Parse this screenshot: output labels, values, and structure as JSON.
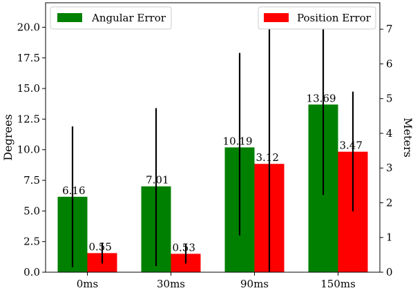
{
  "chart_data": {
    "type": "bar",
    "categories": [
      "0ms",
      "30ms",
      "90ms",
      "150ms"
    ],
    "series": [
      {
        "name": "Angular Error",
        "axis": "left",
        "color": "#008000",
        "values": [
          6.16,
          7.01,
          10.19,
          13.69
        ],
        "value_labels": [
          "6.16",
          "7.01",
          "10.19",
          "13.69"
        ],
        "error_low": [
          0.4,
          0.5,
          3.0,
          6.3
        ],
        "error_high": [
          11.9,
          13.4,
          17.9,
          21.0
        ]
      },
      {
        "name": "Position Error",
        "axis": "right",
        "color": "#ff0000",
        "values": [
          0.55,
          0.53,
          3.12,
          3.47
        ],
        "value_labels": [
          "0.55",
          "0.53",
          "3.12",
          "3.47"
        ],
        "error_low": [
          0.25,
          0.25,
          0.0,
          1.75
        ],
        "error_high": [
          0.85,
          0.8,
          7.0,
          5.2
        ]
      }
    ],
    "ylabel": "Degrees",
    "y2label": "Meters",
    "ylim": [
      0,
      22
    ],
    "y2lim": [
      0,
      7.76
    ],
    "yticks": [
      0.0,
      2.5,
      5.0,
      7.5,
      10.0,
      12.5,
      15.0,
      17.5,
      20.0
    ],
    "ytick_labels": [
      "0.0",
      "2.5",
      "5.0",
      "7.5",
      "10.0",
      "12.5",
      "15.0",
      "17.5",
      "20.0"
    ],
    "y2ticks": [
      0,
      1,
      2,
      3,
      4,
      5,
      6,
      7
    ],
    "y2tick_labels": [
      "0",
      "1",
      "2",
      "3",
      "4",
      "5",
      "6",
      "7"
    ],
    "legend": [
      {
        "label": "Angular Error",
        "placement": "top-left"
      },
      {
        "label": "Position Error",
        "placement": "top-right"
      }
    ],
    "grid": false
  }
}
